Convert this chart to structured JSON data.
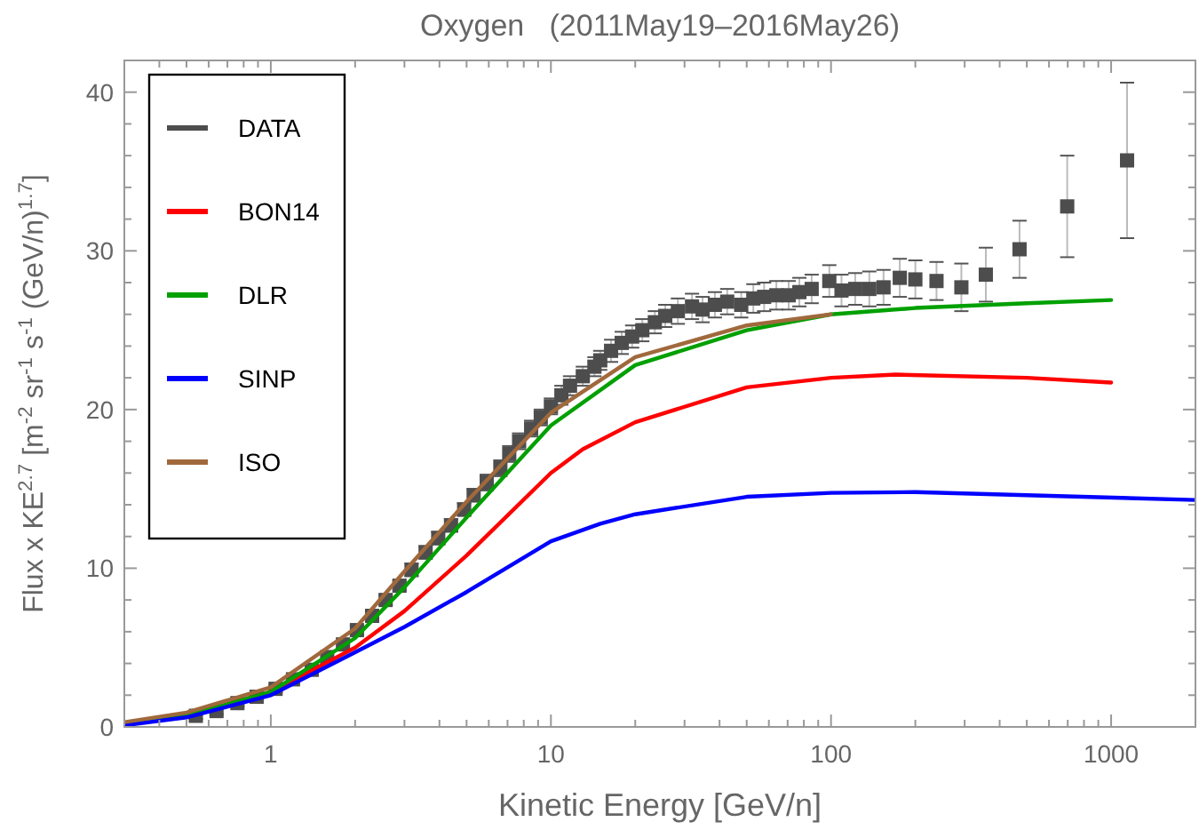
{
  "chart_data": {
    "type": "line",
    "title": "Oxygen   (2011May19–2016May26)",
    "xlabel": "Kinetic Energy [GeV/n]",
    "ylabel": "Flux x KE$^{2.7}$ [m$^{-2}$ sr$^{-1}$ s$^{-1}$ (GeV/n)$^{1.7}$]",
    "log": "x",
    "xlim": [
      0.3,
      2000
    ],
    "ylim": [
      0,
      42
    ],
    "xticks": [
      {
        "value": 0.3,
        "label": null
      },
      {
        "value": 0.4,
        "label": null
      },
      {
        "value": 0.5,
        "label": null
      },
      {
        "value": 0.6,
        "label": null
      },
      {
        "value": 0.7,
        "label": null
      },
      {
        "value": 0.8,
        "label": null
      },
      {
        "value": 0.9,
        "label": null
      },
      1,
      {
        "value": 2,
        "label": null
      },
      {
        "value": 3,
        "label": null
      },
      {
        "value": 4,
        "label": null
      },
      {
        "value": 5,
        "label": null
      },
      {
        "value": 6,
        "label": null
      },
      {
        "value": 7,
        "label": null
      },
      {
        "value": 8,
        "label": null
      },
      {
        "value": 9,
        "label": null
      },
      10,
      {
        "value": 20,
        "label": null
      },
      {
        "value": 30,
        "label": null
      },
      {
        "value": 40,
        "label": null
      },
      {
        "value": 50,
        "label": null
      },
      {
        "value": 60,
        "label": null
      },
      {
        "value": 70,
        "label": null
      },
      {
        "value": 80,
        "label": null
      },
      {
        "value": 90,
        "label": null
      },
      100,
      {
        "value": 200,
        "label": null
      },
      {
        "value": 300,
        "label": null
      },
      {
        "value": 400,
        "label": null
      },
      {
        "value": 500,
        "label": null
      },
      {
        "value": 600,
        "label": null
      },
      {
        "value": 700,
        "label": null
      },
      {
        "value": 800,
        "label": null
      },
      {
        "value": 900,
        "label": null
      },
      1000,
      {
        "value": 2000,
        "label": null
      }
    ],
    "yticks": [
      0,
      {
        "value": 2,
        "label": null
      },
      {
        "value": 4,
        "label": null
      },
      {
        "value": 6,
        "label": null
      },
      {
        "value": 8,
        "label": null
      },
      10,
      {
        "value": 12,
        "label": null
      },
      {
        "value": 14,
        "label": null
      },
      {
        "value": 16,
        "label": null
      },
      {
        "value": 18,
        "label": null
      },
      20,
      {
        "value": 22,
        "label": null
      },
      {
        "value": 24,
        "label": null
      },
      {
        "value": 26,
        "label": null
      },
      {
        "value": 28,
        "label": null
      },
      30,
      {
        "value": 32,
        "label": null
      },
      {
        "value": 34,
        "label": null
      },
      {
        "value": 36,
        "label": null
      },
      {
        "value": 38,
        "label": null
      },
      40
    ],
    "grid": false,
    "legend": "top left",
    "series": [
      {
        "name": "DATA",
        "type": "scatter",
        "marker": "square",
        "color": "#4d4d4d",
        "x": [
          0.54,
          0.64,
          0.76,
          0.89,
          1.04,
          1.2,
          1.4,
          1.59,
          1.81,
          2.03,
          2.3,
          2.57,
          2.88,
          3.18,
          3.57,
          3.96,
          4.4,
          4.9,
          5.3,
          5.9,
          6.6,
          7.1,
          7.7,
          8.5,
          9.2,
          10,
          10.9,
          11.7,
          13,
          14.3,
          15.0,
          16.4,
          17.9,
          19.5,
          21.2,
          23.5,
          25.6,
          28.4,
          31.9,
          34.8,
          38.5,
          42.6,
          47.8,
          52.8,
          57.7,
          63.8,
          70.6,
          77.1,
          85.3,
          98.6,
          109,
          122,
          137,
          154,
          176,
          200,
          238,
          292,
          357,
          471,
          697,
          1140
        ],
        "values": [
          0.7,
          1.0,
          1.5,
          1.9,
          2.4,
          3.0,
          3.6,
          4.4,
          5.2,
          6.1,
          7.0,
          8.0,
          8.9,
          9.9,
          11.0,
          11.9,
          12.7,
          13.7,
          14.6,
          15.4,
          16.3,
          17.2,
          18.0,
          18.8,
          19.5,
          20.2,
          20.9,
          21.5,
          22.1,
          22.7,
          23.1,
          23.7,
          24.2,
          24.6,
          25.0,
          25.5,
          25.9,
          26.2,
          26.5,
          26.3,
          26.6,
          26.8,
          26.6,
          27.0,
          27.1,
          27.2,
          27.2,
          27.4,
          27.6,
          28.1,
          27.5,
          27.6,
          27.6,
          27.7,
          28.3,
          28.2,
          28.1,
          27.7,
          28.5,
          30.1,
          32.8,
          35.7
        ],
        "errors": [
          0.2,
          0.2,
          0.2,
          0.2,
          0.2,
          0.2,
          0.3,
          0.3,
          0.3,
          0.3,
          0.3,
          0.3,
          0.3,
          0.4,
          0.4,
          0.4,
          0.4,
          0.4,
          0.4,
          0.5,
          0.5,
          0.5,
          0.5,
          0.5,
          0.5,
          0.5,
          0.6,
          0.6,
          0.6,
          0.6,
          0.6,
          0.7,
          0.7,
          0.7,
          0.7,
          0.7,
          0.7,
          0.8,
          0.8,
          0.8,
          0.8,
          0.8,
          0.8,
          0.9,
          0.9,
          0.9,
          0.9,
          0.9,
          0.9,
          1.0,
          1.0,
          1.0,
          1.1,
          1.1,
          1.2,
          1.2,
          1.2,
          1.5,
          1.7,
          1.8,
          3.2,
          4.9
        ]
      },
      {
        "name": "BON14",
        "marker": "none",
        "color": "#ff0000",
        "x": [
          0.3,
          0.5,
          1,
          2,
          3,
          5,
          10,
          13,
          20,
          50,
          100,
          170,
          500,
          1000
        ],
        "values": [
          0.15,
          0.7,
          2.2,
          5.0,
          7.3,
          10.8,
          16.0,
          17.5,
          19.2,
          21.4,
          22.0,
          22.2,
          22.0,
          21.7
        ]
      },
      {
        "name": "DLR",
        "marker": "none",
        "color": "#00a000",
        "x": [
          0.3,
          0.5,
          1,
          2,
          3,
          5,
          10,
          20,
          50,
          100,
          200,
          500,
          1000
        ],
        "values": [
          0.15,
          0.7,
          2.2,
          5.6,
          8.8,
          13.2,
          19.0,
          22.8,
          25.0,
          26.0,
          26.4,
          26.7,
          26.9
        ]
      },
      {
        "name": "SINP",
        "marker": "none",
        "color": "#0000ff",
        "x": [
          0.3,
          0.5,
          1,
          2,
          3,
          5,
          10,
          15,
          20,
          50,
          100,
          200,
          500,
          2000
        ],
        "values": [
          0.1,
          0.6,
          2.0,
          4.7,
          6.3,
          8.5,
          11.7,
          12.8,
          13.4,
          14.5,
          14.75,
          14.8,
          14.6,
          14.3
        ]
      },
      {
        "name": "ISO",
        "marker": "none",
        "color": "#a0693c",
        "x": [
          0.3,
          0.5,
          1,
          2,
          3,
          5,
          10,
          20,
          50,
          100
        ],
        "values": [
          0.3,
          0.9,
          2.5,
          6.2,
          9.8,
          14.2,
          19.8,
          23.3,
          25.3,
          26.0
        ]
      }
    ]
  }
}
